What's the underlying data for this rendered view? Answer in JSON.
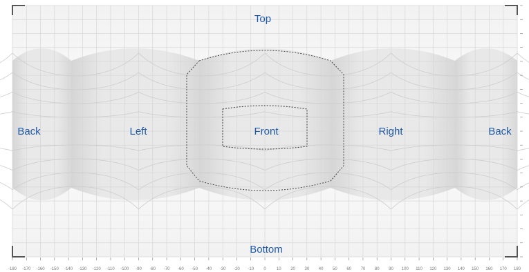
{
  "labels": {
    "top": "Top",
    "bottom": "Bottom",
    "front": "Front",
    "left": "Left",
    "right": "Right",
    "back_left": "Back",
    "back_right": "Back"
  },
  "x_ticks": [
    -180,
    -170,
    -160,
    -150,
    -140,
    -130,
    -120,
    -110,
    -100,
    -90,
    -80,
    -70,
    -60,
    -50,
    -40,
    -30,
    -20,
    -10,
    0,
    10,
    20,
    30,
    40,
    50,
    60,
    70,
    80,
    90,
    100,
    110,
    120,
    130,
    140,
    150,
    160,
    170,
    180
  ],
  "colors": {
    "label": "#1f5aa6",
    "grid": "#d6d6d6",
    "cylinder_fill": "#e2e2e2",
    "tick": "#777777",
    "corner": "#555555",
    "dotted": "#444444"
  }
}
